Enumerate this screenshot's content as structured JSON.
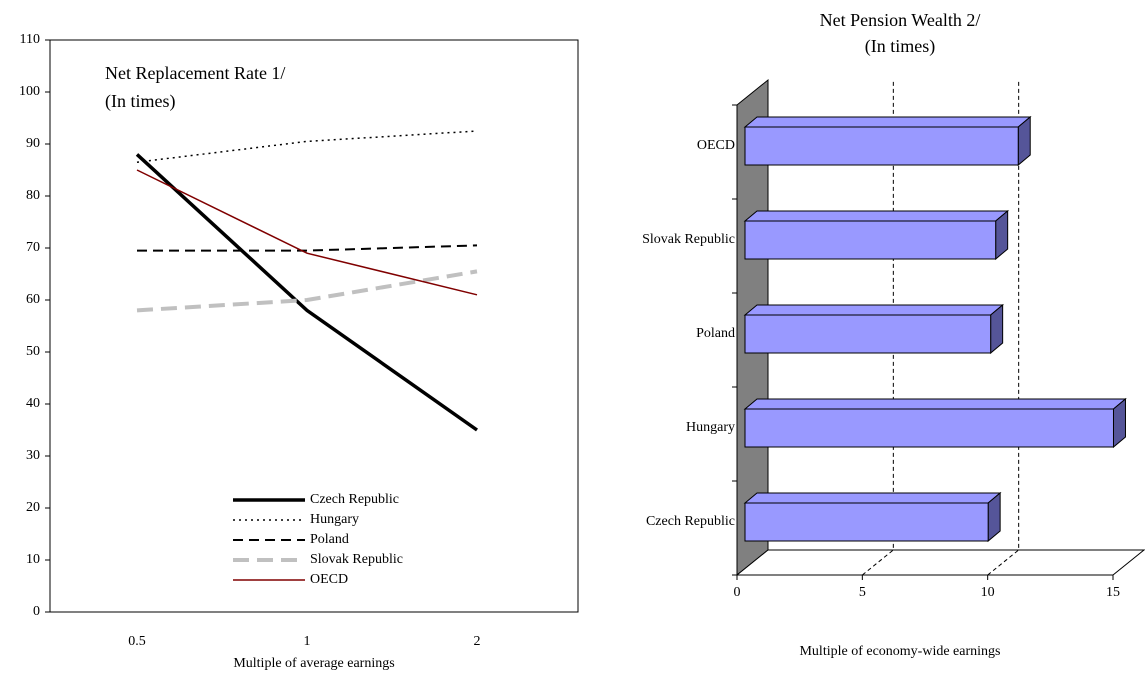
{
  "chart_data": [
    {
      "type": "line",
      "title": "Net Replacement Rate 1/",
      "subtitle": "(In times)",
      "x_label": "Multiple of average earnings",
      "categories": [
        "0.5",
        "1",
        "2"
      ],
      "ylim": [
        0,
        110
      ],
      "yticks": [
        0,
        10,
        20,
        30,
        40,
        50,
        60,
        70,
        80,
        90,
        100,
        110
      ],
      "series": [
        {
          "name": "Czech Republic",
          "color": "#000000",
          "style": "thick-solid",
          "values": [
            88,
            58,
            35
          ]
        },
        {
          "name": "Hungary",
          "color": "#000000",
          "style": "dotted",
          "values": [
            86.5,
            90.5,
            92.5
          ]
        },
        {
          "name": "Poland",
          "color": "#000000",
          "style": "dashed",
          "values": [
            69.5,
            69.5,
            70.5
          ]
        },
        {
          "name": "Slovak Republic",
          "color": "#c0c0c0",
          "style": "thick-dashed",
          "values": [
            58,
            60,
            65.5
          ]
        },
        {
          "name": "OECD",
          "color": "#800000",
          "style": "solid",
          "values": [
            85,
            69,
            61
          ]
        }
      ]
    },
    {
      "type": "bar3d",
      "title": "Net Pension Wealth 2/",
      "subtitle": "(In times)",
      "x_label": "Multiple of economy-wide earnings",
      "categories": [
        "Czech Republic",
        "Hungary",
        "Poland",
        "Slovak Republic",
        "OECD"
      ],
      "values": [
        9.7,
        14.7,
        9.8,
        10,
        10.9
      ],
      "color": "#9999ff",
      "xlim": [
        0,
        15
      ],
      "xticks": [
        0,
        5,
        10,
        15
      ],
      "grid": true
    }
  ]
}
